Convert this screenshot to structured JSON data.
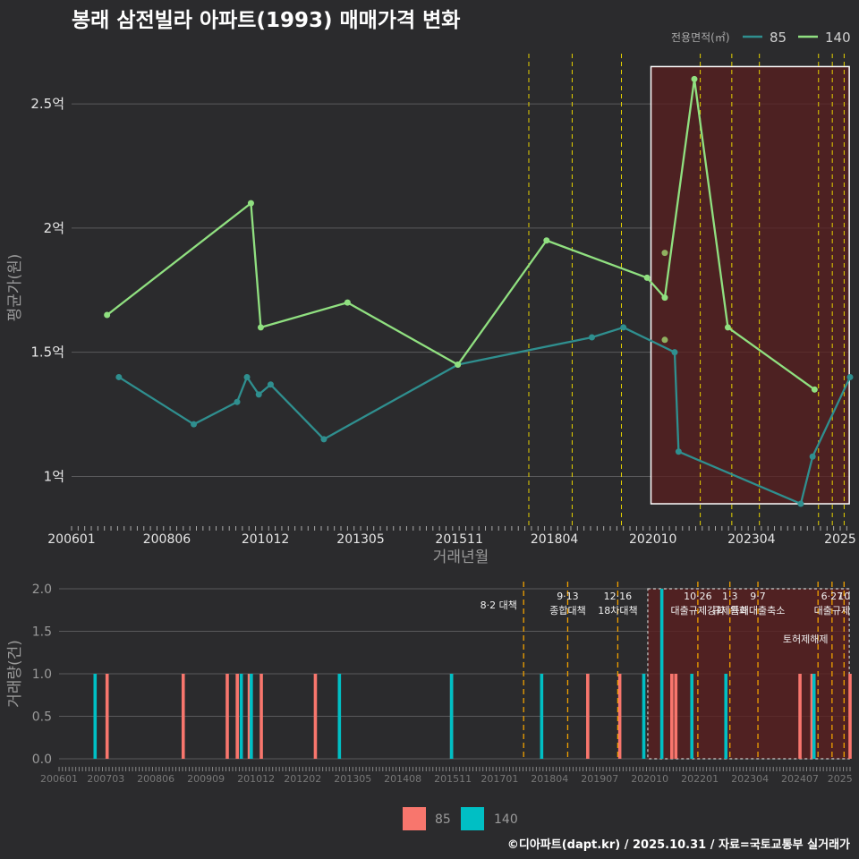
{
  "chart_data": [
    {
      "type": "line",
      "title": "봉래 삼전빌라 아파트(1993) 매매가격 변화",
      "xlabel": "거래년월",
      "ylabel": "평균가(원)",
      "ylim": [
        0.8,
        2.72
      ],
      "xlim": [
        2006.0,
        2025.75
      ],
      "x_ticks": [
        "200601",
        "200806",
        "201012",
        "201305",
        "201511",
        "201804",
        "202010",
        "202304",
        "2025"
      ],
      "x_tick_values": [
        2006.0,
        2008.417,
        2010.917,
        2013.333,
        2015.833,
        2018.25,
        2020.75,
        2023.25,
        2025.5
      ],
      "y_ticks": [
        "1억",
        "1.5억",
        "2억",
        "2.5억"
      ],
      "y_tick_values": [
        1.0,
        1.5,
        2.0,
        2.5
      ],
      "legend_title": "전용면적(㎡)",
      "series": [
        {
          "name": "85",
          "color": "#2f8f8f",
          "points": [
            [
              2007.2,
              1.4
            ],
            [
              2009.1,
              1.21
            ],
            [
              2010.2,
              1.3
            ],
            [
              2010.45,
              1.4
            ],
            [
              2010.75,
              1.33
            ],
            [
              2011.05,
              1.37
            ],
            [
              2012.4,
              1.15
            ],
            [
              2015.8,
              1.45
            ],
            [
              2019.2,
              1.56
            ],
            [
              2020.0,
              1.6
            ],
            [
              2021.3,
              1.5
            ],
            [
              2021.4,
              1.1
            ],
            [
              2024.5,
              0.89
            ],
            [
              2024.8,
              1.08
            ],
            [
              2025.75,
              1.4
            ]
          ]
        },
        {
          "name": "140",
          "color": "#90e080",
          "points": [
            [
              2006.9,
              1.65
            ],
            [
              2010.55,
              2.1
            ],
            [
              2010.8,
              1.6
            ],
            [
              2013.0,
              1.7
            ],
            [
              2015.8,
              1.45
            ],
            [
              2018.05,
              1.95
            ],
            [
              2020.6,
              1.8
            ],
            [
              2021.05,
              1.72
            ],
            [
              2021.8,
              2.6
            ],
            [
              2022.65,
              1.6
            ],
            [
              2024.85,
              1.35
            ]
          ]
        }
      ],
      "extra_points": [
        [
          2021.05,
          1.9
        ],
        [
          2021.05,
          1.55
        ]
      ],
      "policy_lines": [
        2017.6,
        2018.7,
        2019.95,
        2021.95,
        2022.75,
        2023.45,
        2024.95,
        2025.3,
        2025.6
      ],
      "highlight_range": [
        2020.7,
        2025.73
      ],
      "highlight_yrange": [
        0.89,
        2.65
      ]
    },
    {
      "type": "bar",
      "ylabel": "거래량(건)",
      "ylim": [
        0,
        2.0
      ],
      "y_ticks": [
        "0.0",
        "0.5",
        "1.0",
        "1.5",
        "2.0"
      ],
      "y_tick_values": [
        0,
        0.5,
        1.0,
        1.5,
        2.0
      ],
      "x_ticks": [
        "200601",
        "200703",
        "200806",
        "200909",
        "201012",
        "201202",
        "201305",
        "201408",
        "201511",
        "201701",
        "201804",
        "201907",
        "202010",
        "202201",
        "202304",
        "202407",
        "2025"
      ],
      "x_tick_values": [
        2006.0,
        2007.167,
        2008.417,
        2009.667,
        2010.917,
        2012.083,
        2013.333,
        2014.583,
        2015.833,
        2017.0,
        2018.25,
        2019.5,
        2020.75,
        2022.0,
        2023.25,
        2024.5,
        2025.5
      ],
      "xlim": [
        2006.0,
        2025.75
      ],
      "series": [
        {
          "name": "85",
          "color": "#f8766d",
          "x": [
            2007.2,
            2009.1,
            2010.2,
            2010.45,
            2010.75,
            2011.05,
            2012.4,
            2015.8,
            2019.2,
            2020.0,
            2021.3,
            2021.4,
            2024.5,
            2024.8,
            2025.75
          ],
          "values": [
            1,
            1,
            1,
            1,
            1,
            1,
            1,
            1,
            1,
            1,
            1,
            1,
            1,
            1,
            1
          ]
        },
        {
          "name": "140",
          "color": "#00bfc4",
          "x": [
            2006.9,
            2010.55,
            2010.8,
            2013.0,
            2015.8,
            2018.05,
            2020.6,
            2021.05,
            2021.8,
            2022.65,
            2024.85
          ],
          "values": [
            1,
            1,
            1,
            1,
            1,
            1,
            1,
            2,
            1,
            1,
            1
          ]
        }
      ],
      "annotations": [
        {
          "x": 2017.6,
          "lines": [
            "8·2 대책"
          ]
        },
        {
          "x": 2018.7,
          "lines": [
            "9·13",
            "종합대책"
          ]
        },
        {
          "x": 2019.95,
          "lines": [
            "12·16",
            "18차대책"
          ]
        },
        {
          "x": 2021.95,
          "lines": [
            "10·26",
            "대출규제강화"
          ]
        },
        {
          "x": 2022.75,
          "lines": [
            "1·3",
            "규제완화"
          ]
        },
        {
          "x": 2023.45,
          "lines": [
            "9·7",
            "특례대출축소"
          ]
        },
        {
          "x": 2024.95,
          "lines": [
            "",
            "토허제해제"
          ]
        },
        {
          "x": 2025.3,
          "lines": [
            "6·27",
            "대출규제"
          ]
        },
        {
          "x": 2025.6,
          "lines": [
            "10",
            ""
          ]
        }
      ],
      "legend": [
        "85",
        "140"
      ]
    }
  ],
  "footer": "©디아파트(dapt.kr) / 2025.10.31 / 자료=국토교통부 실거래가"
}
